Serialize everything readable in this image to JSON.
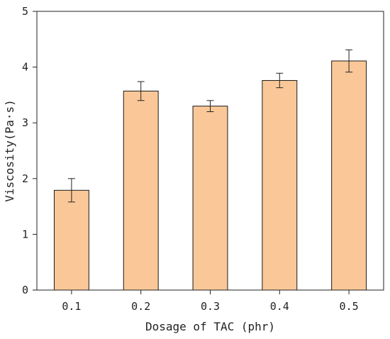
{
  "chart_data": {
    "type": "bar",
    "title": "",
    "xlabel": "Dosage of TAC (phr)",
    "ylabel": "Viscosity(Pa·s)",
    "categories": [
      "0.1",
      "0.2",
      "0.3",
      "0.4",
      "0.5"
    ],
    "values": [
      1.79,
      3.57,
      3.3,
      3.76,
      4.11
    ],
    "error_bars": [
      0.21,
      0.17,
      0.1,
      0.13,
      0.2
    ],
    "ylim": [
      0,
      5
    ],
    "yticks": [
      "0",
      "1",
      "2",
      "3",
      "4",
      "5"
    ],
    "grid": false,
    "legend": "none",
    "colors": {
      "bar_fill": "#FAC898",
      "bar_stroke": "#1a1a1a",
      "axis": "#222222"
    }
  }
}
